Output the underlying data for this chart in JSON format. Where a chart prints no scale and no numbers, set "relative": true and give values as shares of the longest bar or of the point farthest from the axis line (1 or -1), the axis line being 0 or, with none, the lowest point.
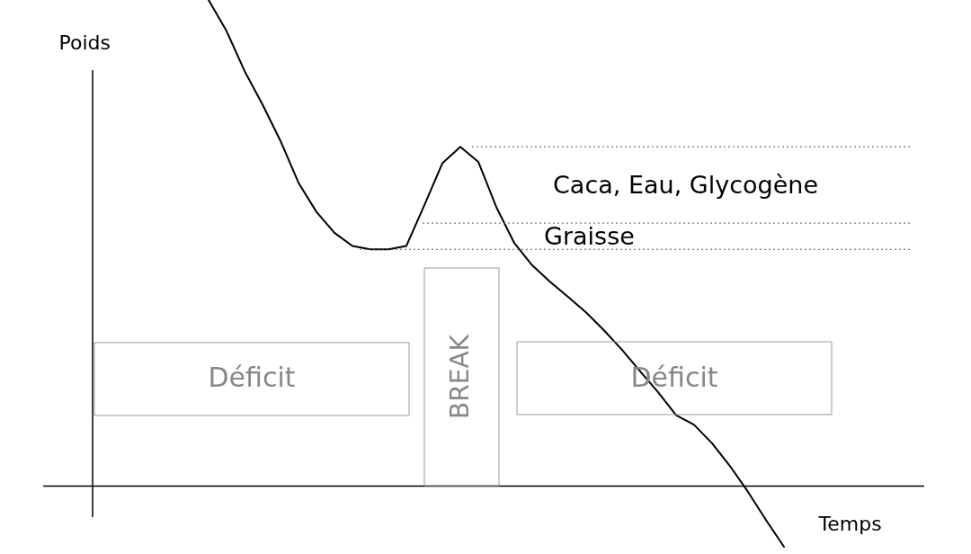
{
  "chart_data": {
    "type": "line",
    "xlabel": "Temps",
    "ylabel": "Poids",
    "relative": true,
    "categories": [
      null,
      null,
      null,
      null,
      null,
      null,
      null,
      null,
      null,
      null,
      null,
      null,
      null,
      null,
      null,
      null,
      null,
      null,
      null,
      null,
      null,
      null,
      null,
      null,
      null,
      null,
      null,
      null,
      null,
      null,
      null,
      null,
      null
    ],
    "series": [
      {
        "color": "#000000",
        "values": [
          1,
          0.936,
          0.854,
          0.785,
          0.71,
          0.624,
          0.564,
          0.521,
          0.494,
          0.487,
          0.487,
          0.494,
          0.578,
          0.664,
          0.698,
          0.667,
          0.574,
          0.5,
          0.454,
          0.42,
          0.389,
          0.357,
          0.32,
          0.28,
          0.236,
          0.193,
          0.146,
          0.126,
          0.088,
          0.041,
          -0.012,
          -0.07,
          -0.125
        ]
      }
    ],
    "ref_lines": [
      {
        "axis": "y",
        "value": 0.698,
        "color": "#555555",
        "line_style": "dotted"
      },
      {
        "axis": "y",
        "value": 0.541,
        "color": "#555555",
        "line_style": "dotted"
      },
      {
        "axis": "y",
        "value": 0.487,
        "color": "#555555",
        "line_style": "dotted"
      }
    ],
    "annotations": [
      "Caca, Eau, Glycogène",
      "Graisse",
      "Déficit",
      "BREAK",
      "Déficit"
    ]
  }
}
